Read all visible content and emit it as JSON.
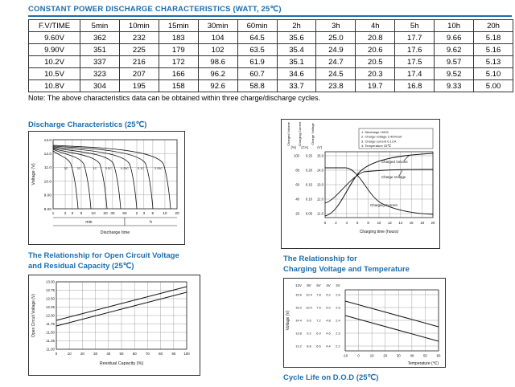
{
  "colors": {
    "accent_blue": "#1a6eb0"
  },
  "page": {
    "header": "CONSTANT POWER DISCHARGE CHARACTERISTICS (WATT, 25℃)",
    "note": "Note: The above characteristics data can be obtained within three charge/discharge cycles."
  },
  "table": {
    "headers": [
      "F.V/TIME",
      "5min",
      "10min",
      "15min",
      "30min",
      "60min",
      "2h",
      "3h",
      "4h",
      "5h",
      "10h",
      "20h"
    ],
    "rows": [
      [
        "9.60V",
        "362",
        "232",
        "183",
        "104",
        "64.5",
        "35.6",
        "25.0",
        "20.8",
        "17.7",
        "9.66",
        "5.18"
      ],
      [
        "9.90V",
        "351",
        "225",
        "179",
        "102",
        "63.5",
        "35.4",
        "24.9",
        "20.6",
        "17.6",
        "9.62",
        "5.16"
      ],
      [
        "10.2V",
        "337",
        "216",
        "172",
        "98.6",
        "61.9",
        "35.1",
        "24.7",
        "20.5",
        "17.5",
        "9.57",
        "5.13"
      ],
      [
        "10.5V",
        "323",
        "207",
        "166",
        "96.2",
        "60.7",
        "34.6",
        "24.5",
        "20.3",
        "17.4",
        "9.52",
        "5.10"
      ],
      [
        "10.8V",
        "304",
        "195",
        "158",
        "92.6",
        "58.8",
        "33.7",
        "23.8",
        "19.7",
        "16.8",
        "9.33",
        "5.00"
      ]
    ]
  },
  "sections": {
    "discharge_title": "Discharge Characteristics (25℃)",
    "ocv_title_1": "The Relationship for Open Circuit Voltage",
    "ocv_title_2": "and Residual Capacity (25℃)",
    "chgtemp_title_1": "The Relationship for",
    "chgtemp_title_2": "Charging Voltage and Temperature",
    "cycle_life_title": "Cycle Life on D.O.D (25℃)"
  },
  "charts": {
    "discharge": {
      "type": "line",
      "y_label": "Voltage (V)",
      "y_ticks": [
        "13.0",
        "12.0",
        "11.0",
        "10.0",
        "9.00",
        "8.00"
      ],
      "x_ticks_min": [
        "1",
        "2",
        "3",
        "5",
        "10",
        "20",
        "30",
        "60"
      ],
      "x_ticks_h": [
        "2",
        "3",
        "5",
        "10",
        "20"
      ],
      "x_unit_min": "min",
      "x_unit_h": "h",
      "x_label": "Discharge time",
      "curve_labels": [
        "3C",
        "2C",
        "1C",
        "0.5C",
        "0.25C",
        "0.1C",
        "0.05C"
      ]
    },
    "charge": {
      "type": "line",
      "axis_names": [
        "Charged Volume",
        "Charging Current",
        "Charge Voltage"
      ],
      "axis_units": [
        "(%)",
        "(CA)",
        "(V)"
      ],
      "y_ticks_percent": [
        "100",
        "80",
        "60",
        "40",
        "20"
      ],
      "y_ticks_ca": [
        "0.25",
        "0.20",
        "0.15",
        "0.10",
        "0.05"
      ],
      "y_ticks_v": [
        "15.0",
        "14.0",
        "13.0",
        "12.0",
        "11.0"
      ],
      "x_ticks": [
        "0",
        "2",
        "4",
        "6",
        "8",
        "10",
        "12",
        "14",
        "16",
        "18",
        "20"
      ],
      "x_label": "Charging time (hours)",
      "legend": [
        "1. Discharge 100%",
        "2. Charge voltage 2.40V/cell",
        "3. Charge current 0.1CA",
        "4. Temperature 25℃"
      ],
      "annotations": [
        "Charged Volume",
        "Charge Voltage",
        "Charging Current"
      ]
    },
    "ocv": {
      "type": "line",
      "y_label": "Open Circuit Voltage (V)",
      "y_ticks": [
        "13.00",
        "12.75",
        "12.50",
        "12.25",
        "12.00",
        "11.75",
        "11.50",
        "11.25",
        "11.00"
      ],
      "x_ticks": [
        "0",
        "10",
        "20",
        "30",
        "40",
        "50",
        "60",
        "70",
        "80",
        "90",
        "100"
      ],
      "x_label": "Residual Capacity (%)"
    },
    "charge_temp": {
      "type": "line",
      "y_label": "Voltage (V)",
      "col_headers": [
        "12V",
        "8V",
        "6V",
        "4V",
        "2V"
      ],
      "scales": [
        [
          "15.6",
          "15.0",
          "14.4",
          "13.8",
          "13.2"
        ],
        [
          "10.4",
          "10.0",
          "9.6",
          "9.2",
          "8.8"
        ],
        [
          "7.8",
          "7.5",
          "7.2",
          "6.9",
          "6.6"
        ],
        [
          "5.2",
          "5.0",
          "4.8",
          "4.6",
          "4.4"
        ],
        [
          "2.6",
          "2.5",
          "2.4",
          "2.3",
          "2.2"
        ]
      ],
      "x_ticks": [
        "-10",
        "0",
        "10",
        "20",
        "30",
        "40",
        "50",
        "60"
      ],
      "x_label": "Temperature (℃)"
    }
  }
}
